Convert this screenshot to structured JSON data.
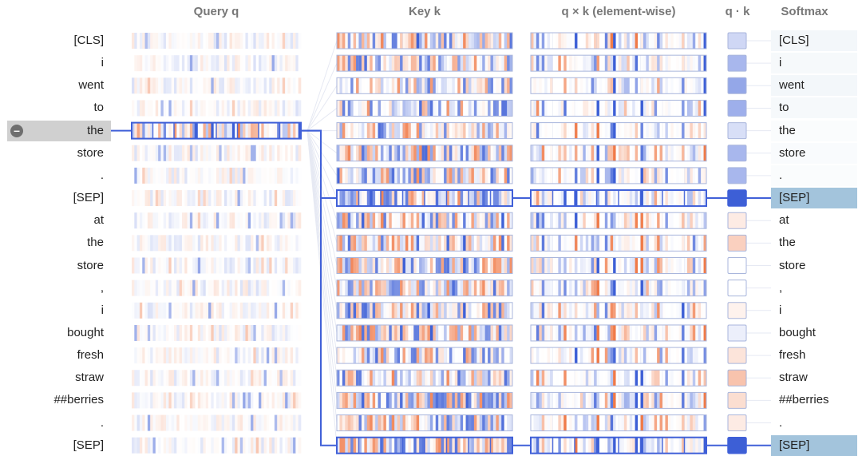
{
  "headers": {
    "query": "Query q",
    "key": "Key k",
    "product": "q × k (element-wise)",
    "dot": "q · k",
    "softmax": "Softmax"
  },
  "tokens": [
    "[CLS]",
    "i",
    "went",
    "to",
    "the",
    "store",
    ".",
    "[SEP]",
    "at",
    "the",
    "store",
    ",",
    "i",
    "bought",
    "fresh",
    "straw",
    "##berries",
    ".",
    "[SEP]"
  ],
  "selected_index": 4,
  "highlighted_indices": [
    7,
    18
  ],
  "selected_icon": "minus-circle-icon",
  "dot_scores": [
    0.25,
    0.45,
    0.55,
    0.5,
    0.2,
    0.45,
    0.45,
    1.0,
    -0.15,
    -0.35,
    0.0,
    0.0,
    -0.1,
    0.1,
    -0.2,
    -0.45,
    -0.25,
    -0.15,
    1.0
  ],
  "softmax_weights": [
    0.05,
    0.04,
    0.05,
    0.04,
    0.02,
    0.03,
    0.02,
    0.4,
    0.0,
    0.0,
    0.0,
    0.0,
    0.0,
    0.0,
    0.0,
    0.0,
    0.0,
    0.0,
    0.4
  ],
  "colors": {
    "positive": "#3d5fd6",
    "negative": "#f07a48",
    "connector": "#4060d8",
    "softmax_highlight": "#a3c4dc",
    "selected_row_bg": "#d0d0d0",
    "header_text": "#777777"
  }
}
